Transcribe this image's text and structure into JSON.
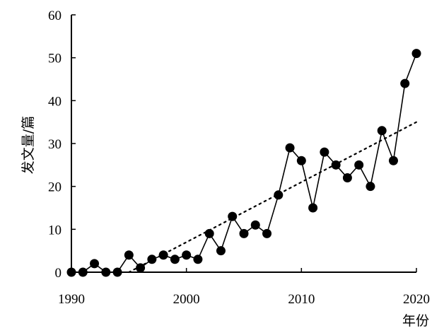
{
  "chart_data": {
    "type": "line",
    "title": "",
    "xlabel": "年份",
    "ylabel": "发文量/篇",
    "xlim": [
      1990,
      2020
    ],
    "ylim": [
      0,
      60
    ],
    "x_ticks": [
      1990,
      2000,
      2010,
      2020
    ],
    "y_ticks": [
      0,
      10,
      20,
      30,
      40,
      50,
      60
    ],
    "grid": false,
    "legend": "none",
    "series": [
      {
        "style": "solid-line-with-filled-circle-markers",
        "color": "#000000",
        "x": [
          1990,
          1991,
          1992,
          1993,
          1994,
          1995,
          1996,
          1997,
          1998,
          1999,
          2000,
          2001,
          2002,
          2003,
          2004,
          2005,
          2006,
          2007,
          2008,
          2009,
          2010,
          2011,
          2012,
          2013,
          2014,
          2015,
          2016,
          2017,
          2018,
          2019,
          2020
        ],
        "y": [
          0,
          0,
          2,
          0,
          0,
          4,
          1,
          3,
          4,
          3,
          4,
          3,
          9,
          5,
          13,
          9,
          11,
          9,
          18,
          29,
          26,
          15,
          28,
          25,
          22,
          25,
          20,
          33,
          26,
          44,
          51
        ]
      }
    ],
    "trendline": {
      "style": "dotted",
      "color": "#000000",
      "x": [
        1995,
        2020
      ],
      "y": [
        0,
        35
      ]
    }
  }
}
